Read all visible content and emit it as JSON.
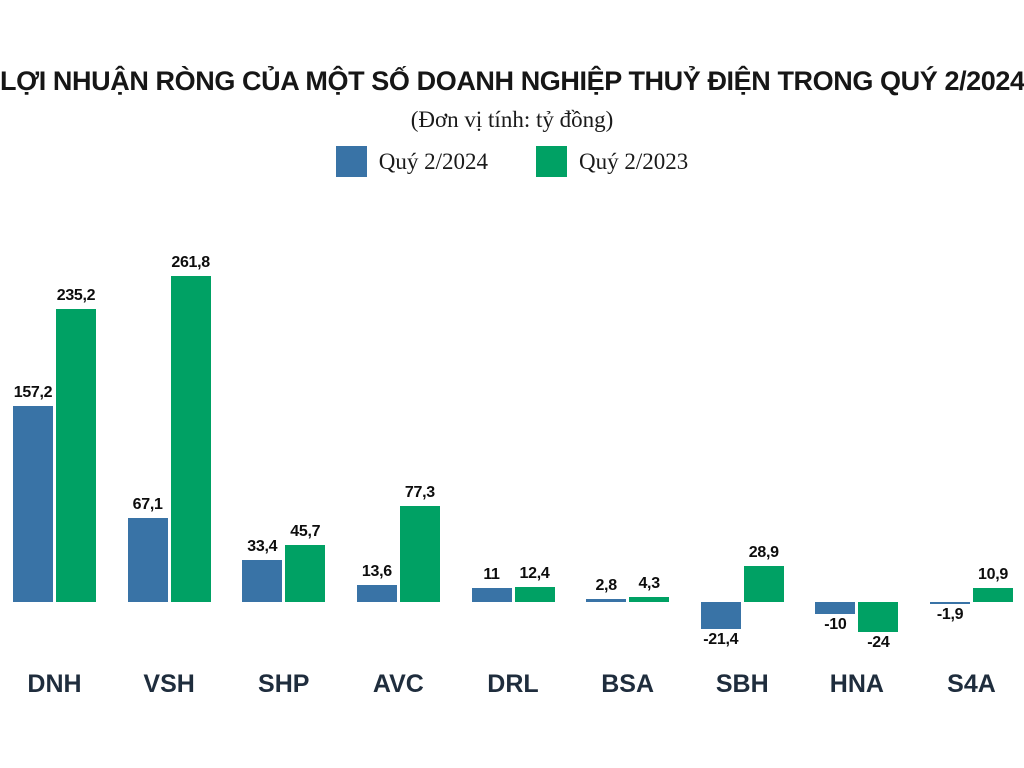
{
  "title": "LỢI NHUẬN RÒNG CỦA MỘT SỐ DOANH NGHIỆP THUỶ ĐIỆN TRONG QUÝ 2/2024",
  "subtitle": "(Đơn vị tính: tỷ đồng)",
  "legend": [
    {
      "label": "Quý 2/2024",
      "color": "#3973a6"
    },
    {
      "label": "Quý 2/2023",
      "color": "#00a164"
    }
  ],
  "colors": {
    "series_2024": "#3973a6",
    "series_2023": "#00a164",
    "title_text": "#161616",
    "category_text": "#1f2d3d",
    "value_text": "#0d0d0d",
    "background": "#ffffff"
  },
  "chart_data": {
    "type": "bar",
    "title": "LỢI NHUẬN RÒNG CỦA MỘT SỐ DOANH NGHIỆP THUỶ ĐIỆN TRONG QUÝ 2/2024",
    "subtitle": "(Đơn vị tính: tỷ đồng)",
    "unit": "tỷ đồng",
    "categories": [
      "DNH",
      "VSH",
      "SHP",
      "AVC",
      "DRL",
      "BSA",
      "SBH",
      "HNA",
      "S4A"
    ],
    "series": [
      {
        "name": "Quý 2/2024",
        "color": "#3973a6",
        "values": [
          157.2,
          67.1,
          33.4,
          13.6,
          11,
          2.8,
          -21.4,
          -10,
          -1.9
        ],
        "labels": [
          "157,2",
          "67,1",
          "33,4",
          "13,6",
          "11",
          "2,8",
          "-21,4",
          "-10",
          "-1,9"
        ]
      },
      {
        "name": "Quý 2/2023",
        "color": "#00a164",
        "values": [
          235.2,
          261.8,
          45.7,
          77.3,
          12.4,
          4.3,
          28.9,
          -24,
          10.9
        ],
        "labels": [
          "235,2",
          "261,8",
          "45,7",
          "77,3",
          "12,4",
          "4,3",
          "28,9",
          "-24",
          "10,9"
        ]
      }
    ],
    "ylim": [
      -24,
      261.8
    ],
    "grid": false,
    "axis_lines": false,
    "legend_position": "top",
    "value_labels": "on-bars",
    "decimal_separator": ","
  }
}
